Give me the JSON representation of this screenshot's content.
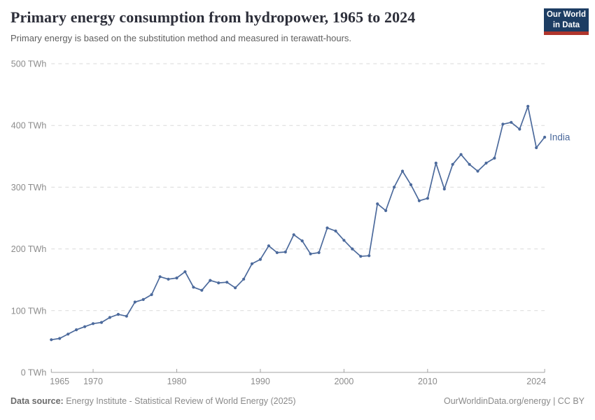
{
  "header": {
    "title": "Primary energy consumption from hydropower, 1965 to 2024",
    "subtitle": "Primary energy is based on the substitution method and measured in terawatt-hours.",
    "logo": {
      "line1": "Our World",
      "line2": "in Data"
    }
  },
  "footer": {
    "source_label": "Data source:",
    "source_text": " Energy Institute - Statistical Review of World Energy (2025)",
    "link_text": "OurWorldinData.org/energy | CC BY"
  },
  "colors": {
    "line": "#4c6a9c",
    "entity_label": "#4c6a9c",
    "grid": "#d9d9d9",
    "axis": "#a3a3a3",
    "tick_text": "#8c8c8c",
    "logo_bg": "#1d3d63",
    "logo_red": "#b0352c",
    "title_text": "#2d2f3a"
  },
  "chart_data": {
    "type": "line",
    "title": "Primary energy consumption from hydropower, 1965 to 2024",
    "subtitle": "Primary energy is based on the substitution method and measured in terawatt-hours.",
    "unit": "TWh",
    "xlabel": "",
    "ylabel": "",
    "ylim": [
      0,
      500
    ],
    "yticks": [
      0,
      100,
      200,
      300,
      400,
      500
    ],
    "ytick_suffix": " TWh",
    "xticks": [
      1965,
      1970,
      1980,
      1990,
      2000,
      2010,
      2024
    ],
    "grid": "horizontal-dashed",
    "legend": "end-of-line-label",
    "series": [
      {
        "name": "India",
        "x": [
          1965,
          1966,
          1967,
          1968,
          1969,
          1970,
          1971,
          1972,
          1973,
          1974,
          1975,
          1976,
          1977,
          1978,
          1979,
          1980,
          1981,
          1982,
          1983,
          1984,
          1985,
          1986,
          1987,
          1988,
          1989,
          1990,
          1991,
          1992,
          1993,
          1994,
          1995,
          1996,
          1997,
          1998,
          1999,
          2000,
          2001,
          2002,
          2003,
          2004,
          2005,
          2006,
          2007,
          2008,
          2009,
          2010,
          2011,
          2012,
          2013,
          2014,
          2015,
          2016,
          2017,
          2018,
          2019,
          2020,
          2021,
          2022,
          2023,
          2024
        ],
        "values": [
          53,
          55,
          62,
          69,
          74,
          79,
          81,
          89,
          94,
          91,
          114,
          118,
          126,
          155,
          151,
          153,
          163,
          138,
          133,
          149,
          145,
          146,
          137,
          151,
          176,
          183,
          205,
          194,
          195,
          223,
          213,
          192,
          194,
          234,
          229,
          214,
          200,
          188,
          189,
          273,
          262,
          300,
          326,
          304,
          278,
          282,
          339,
          297,
          337,
          353,
          337,
          326,
          339,
          347,
          402,
          405,
          394,
          431,
          364,
          381
        ]
      }
    ]
  }
}
